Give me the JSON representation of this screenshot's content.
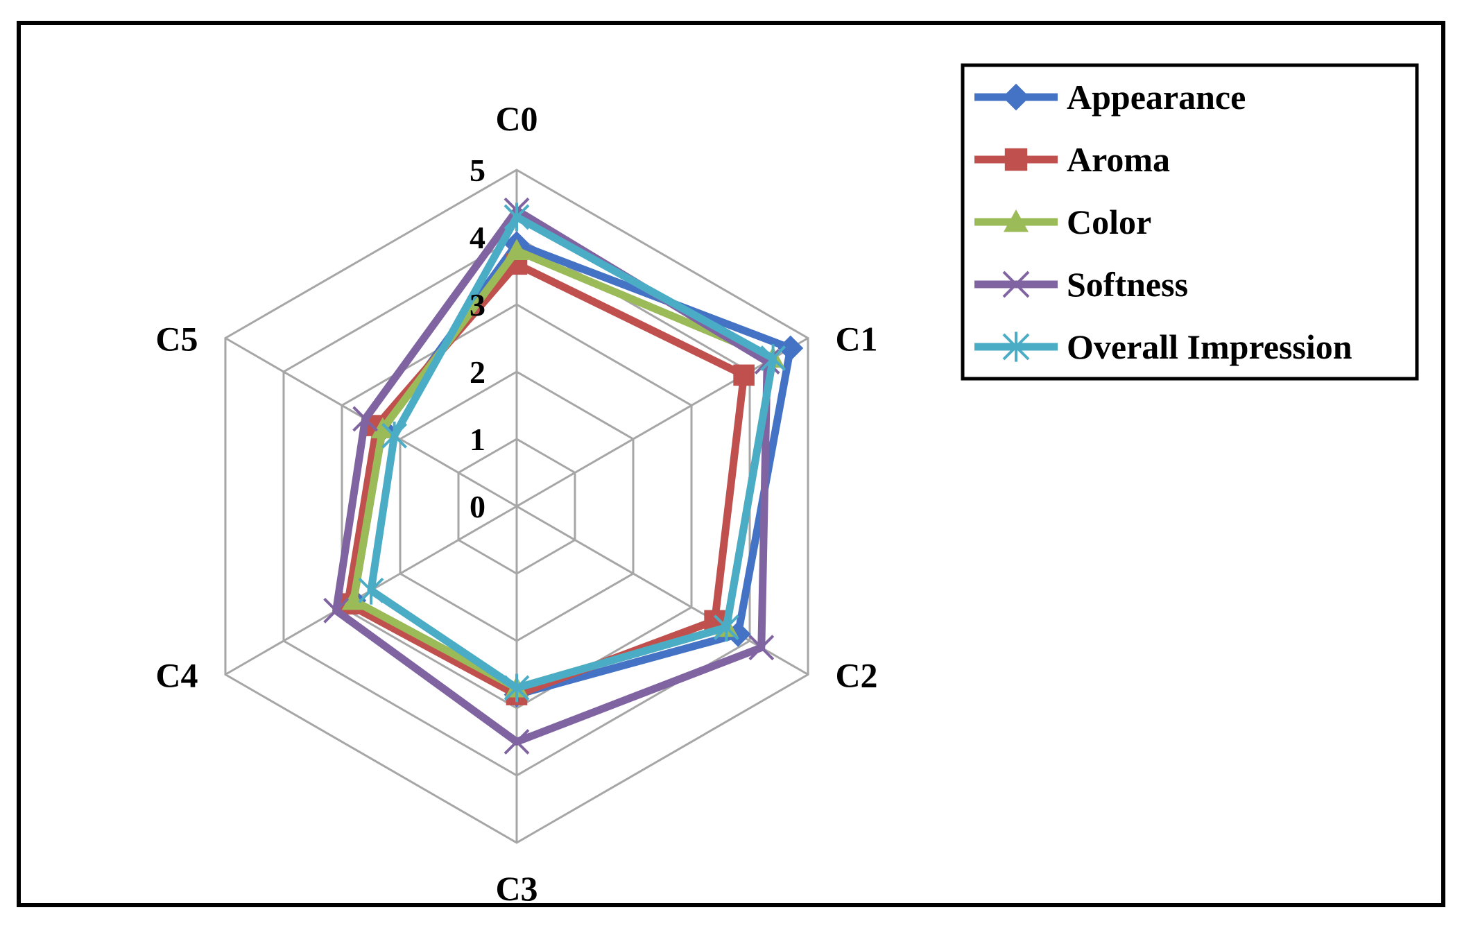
{
  "chart_data": {
    "type": "radar",
    "categories": [
      "C0",
      "C1",
      "C2",
      "C3",
      "C4",
      "C5"
    ],
    "rlim": [
      0,
      5
    ],
    "rticks": [
      "0",
      "1",
      "2",
      "3",
      "4",
      "5"
    ],
    "grid": true,
    "legend_position": "top-right",
    "series": [
      {
        "name": "Appearance",
        "color": "#4472C4",
        "marker": "diamond",
        "values": [
          3.9,
          4.7,
          3.8,
          2.8,
          2.8,
          2.3
        ]
      },
      {
        "name": "Aroma",
        "color": "#C0504D",
        "marker": "square",
        "values": [
          3.6,
          3.9,
          3.4,
          2.8,
          2.9,
          2.4
        ]
      },
      {
        "name": "Color",
        "color": "#9BBB59",
        "marker": "triangle",
        "values": [
          3.8,
          4.4,
          3.6,
          2.7,
          2.8,
          2.3
        ]
      },
      {
        "name": "Softness",
        "color": "#8064A2",
        "marker": "x",
        "values": [
          4.4,
          4.3,
          4.2,
          3.5,
          3.1,
          2.6
        ]
      },
      {
        "name": "Overall Impression",
        "color": "#4BACC6",
        "marker": "asterisk",
        "values": [
          4.3,
          4.4,
          3.6,
          2.7,
          2.5,
          2.1
        ]
      }
    ]
  }
}
